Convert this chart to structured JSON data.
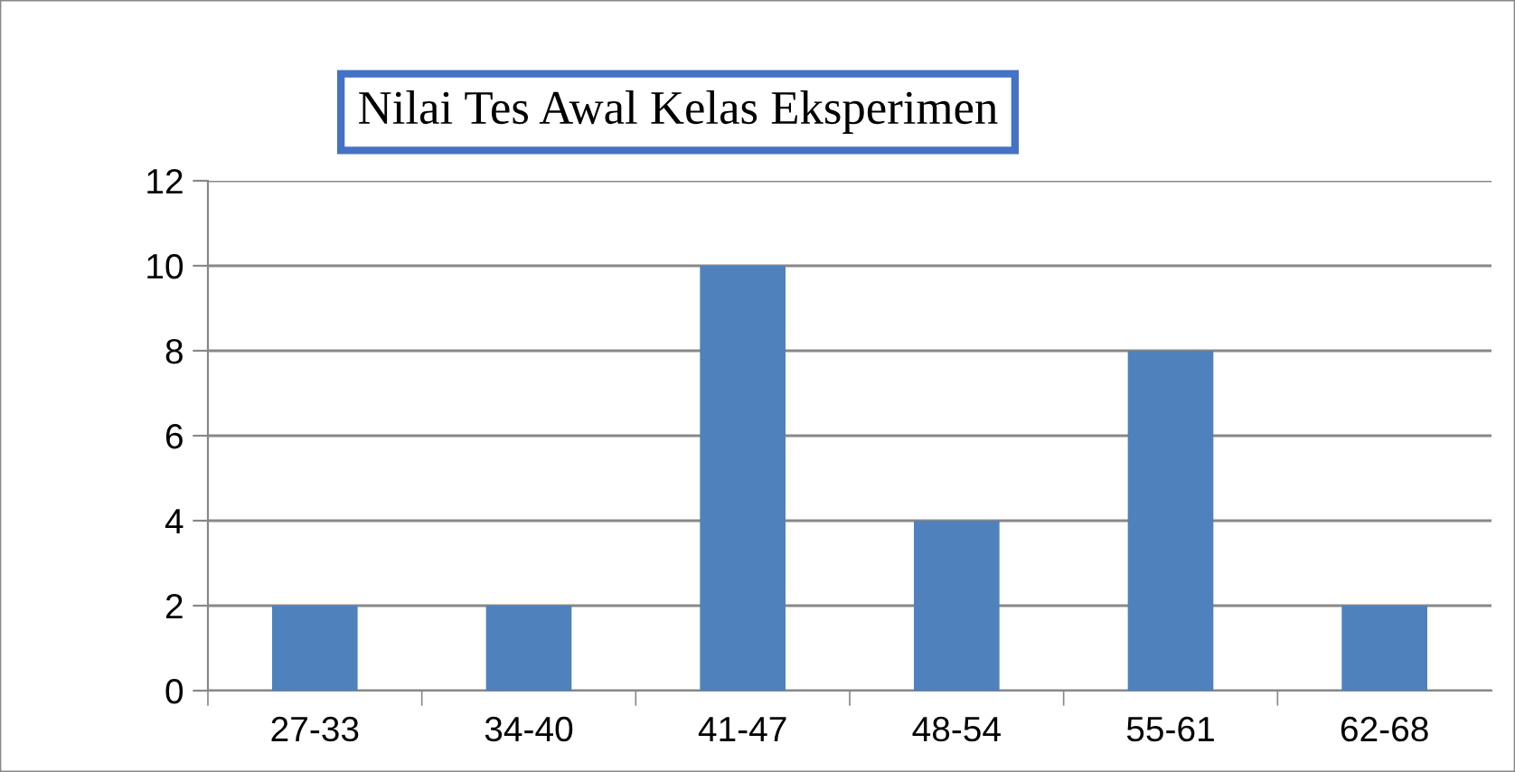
{
  "chart_data": {
    "type": "bar",
    "title": "Nilai Tes Awal Kelas Eksperimen",
    "categories": [
      "27-33",
      "34-40",
      "41-47",
      "48-54",
      "55-61",
      "62-68"
    ],
    "values": [
      2,
      2,
      10,
      4,
      8,
      2
    ],
    "color": "#4f81bd",
    "ylim": [
      0,
      12
    ],
    "yticks": [
      0,
      2,
      4,
      6,
      8,
      10,
      12
    ],
    "grid": "y",
    "legend": false
  }
}
